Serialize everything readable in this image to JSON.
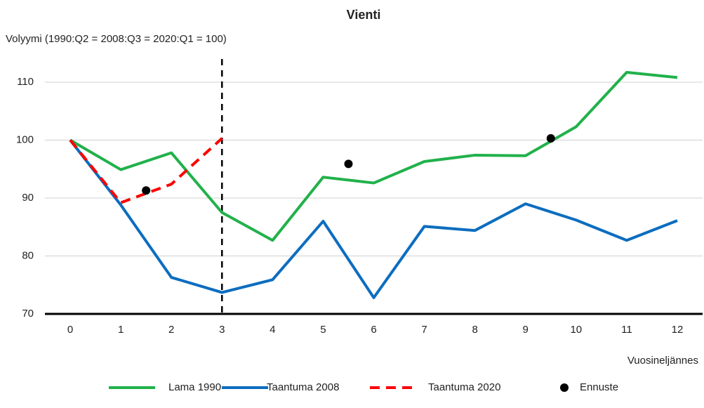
{
  "chart_data": {
    "type": "line",
    "title": "Vienti",
    "y_label": "Volyymi (1990:Q2 = 2008:Q3 = 2020:Q1 = 100)",
    "x_label": "Vuosineljännes",
    "x": [
      0,
      1,
      2,
      3,
      4,
      5,
      6,
      7,
      8,
      9,
      10,
      11,
      12
    ],
    "xlim": [
      -0.5,
      12.5
    ],
    "xticks": [
      0,
      1,
      2,
      3,
      4,
      5,
      6,
      7,
      8,
      9,
      10,
      11,
      12
    ],
    "ylim": [
      70,
      114
    ],
    "yticks": [
      70,
      80,
      90,
      100,
      110
    ],
    "grid": true,
    "vline_x": 3,
    "series": [
      {
        "name": "Lama 1990",
        "color": "#21b14b",
        "values": [
          100,
          94.9,
          97.8,
          87.5,
          82.7,
          93.6,
          92.6,
          96.3,
          97.4,
          97.3,
          102.3,
          111.7,
          110.8
        ]
      },
      {
        "name": "Taantuma 2008",
        "color": "#0c6dbf",
        "values": [
          100,
          88.8,
          76.3,
          73.7,
          75.9,
          86.0,
          72.8,
          85.1,
          84.4,
          89.0,
          86.2,
          82.7,
          86.1
        ]
      },
      {
        "name": "Taantuma 2020",
        "color": "#ff0000",
        "dashed": true,
        "values": [
          100,
          89.2,
          92.4,
          100.3,
          null,
          null,
          null,
          null,
          null,
          null,
          null,
          null,
          null
        ]
      }
    ],
    "points": {
      "name": "Ennuste",
      "color": "#000000",
      "x": [
        1.5,
        5.5,
        9.5
      ],
      "values": [
        91.3,
        95.9,
        100.3
      ]
    }
  }
}
